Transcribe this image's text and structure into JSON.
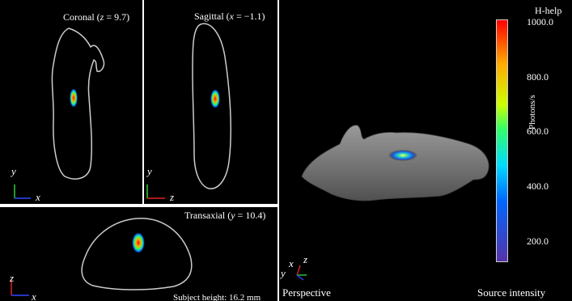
{
  "coronal": {
    "prefix": "Coronal (",
    "axis": "z",
    "value": " = 9.7)"
  },
  "sagittal": {
    "prefix": "Sagittal (",
    "axis": "x",
    "value": " = −1.1)"
  },
  "transaxial": {
    "prefix": "Transaxial (",
    "axis": "y",
    "value": " = 10.4)"
  },
  "subject_height": "Subject height: 16.2 mm",
  "perspective_label": "Perspective",
  "help_label": "H-help",
  "colorbar": {
    "title": "Photons/s",
    "caption": "Source intensity",
    "ticks": [
      "1000.0",
      "800.0",
      "600.0",
      "400.0",
      "200.0"
    ],
    "colors": [
      "#ff0000",
      "#ffaa00",
      "#ccff00",
      "#33ff66",
      "#00ddff",
      "#0066ff",
      "#5533aa"
    ]
  },
  "axis_letters": {
    "coronal": [
      "y",
      "x"
    ],
    "sagittal": [
      "y",
      "z"
    ],
    "transaxial": [
      "z",
      "x"
    ],
    "perspective": [
      "x",
      "z",
      "y"
    ]
  }
}
